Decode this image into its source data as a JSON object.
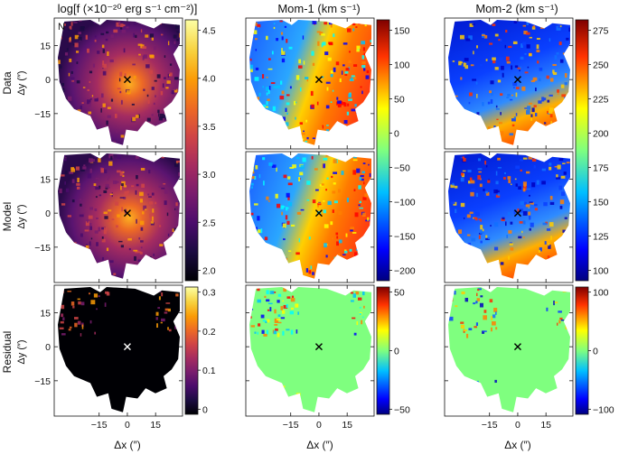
{
  "titles": {
    "flux": "log[f (×10⁻²⁰ erg s⁻¹ cm⁻²)]",
    "mom1": "Mom-1 (km s⁻¹)",
    "mom2": "Mom-2 (km s⁻¹)"
  },
  "north_label": "N",
  "rows": [
    {
      "label": "Data",
      "ylabel": "Δy (″)"
    },
    {
      "label": "Model",
      "ylabel": "Δy (″)"
    },
    {
      "label": "Residual",
      "ylabel": "Δy (″)"
    }
  ],
  "x_axis_label": "Δx (″)",
  "axis_ticks": {
    "x": [
      "−15",
      "0",
      "15"
    ],
    "y": [
      "15",
      "0",
      "−15"
    ]
  },
  "colorbars": {
    "flux_top": [
      "4.5",
      "4.0",
      "3.5",
      "3.0",
      "2.5",
      "2.0"
    ],
    "mom1_top": [
      "150",
      "100",
      "50",
      "0",
      "−50",
      "−100",
      "−150",
      "−200"
    ],
    "mom2_top": [
      "275",
      "250",
      "225",
      "200",
      "175",
      "150",
      "125",
      "100"
    ],
    "flux_res": [
      "0.3",
      "0.2",
      "0.1",
      "0"
    ],
    "mom1_res": [
      "50",
      "0",
      "−50"
    ],
    "mom2_res": [
      "100",
      "0",
      "−100"
    ]
  },
  "colors": {
    "inferno": [
      "#000004",
      "#1b0c41",
      "#4a0c6b",
      "#781c6d",
      "#a52c60",
      "#cf4446",
      "#ed6925",
      "#fb9b06",
      "#f7d13d",
      "#fcffa4"
    ],
    "jet": [
      "#00007f",
      "#0000ff",
      "#007fff",
      "#00ffff",
      "#7fff7f",
      "#ffff00",
      "#ff7f00",
      "#ff0000",
      "#7f0000"
    ],
    "jet_mid": "#7fff7f",
    "marker": "#000000",
    "marker_res": "#ffffff"
  }
}
